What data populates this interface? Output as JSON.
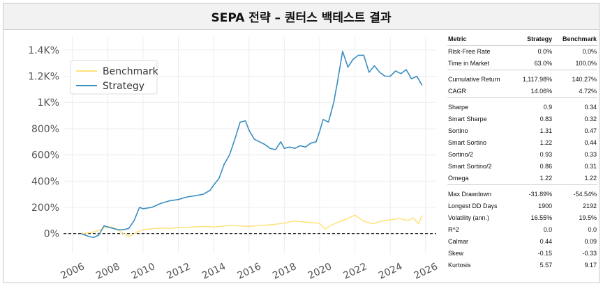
{
  "title": "SEPA 전략 – 퀀터스 백테스트 결과",
  "chart_data": {
    "type": "line",
    "xlim": [
      2005.5,
      2026.6
    ],
    "ylim": [
      -150,
      1500
    ],
    "x_ticks": [
      "2006",
      "2008",
      "2010",
      "2012",
      "2014",
      "2016",
      "2018",
      "2020",
      "2022",
      "2024",
      "2026"
    ],
    "x_tick_values": [
      2006,
      2008,
      2010,
      2012,
      2014,
      2016,
      2018,
      2020,
      2022,
      2024,
      2026
    ],
    "y_ticks": [
      "0%",
      "200%",
      "400%",
      "600%",
      "800%",
      "1K%",
      "1.2K%",
      "1.4K%"
    ],
    "y_tick_values": [
      0,
      200,
      400,
      600,
      800,
      1000,
      1200,
      1400
    ],
    "grid": true,
    "legend_position": "top-left",
    "baseline": 0,
    "colors": {
      "Benchmark": "#ffe27a",
      "Strategy": "#3a8ec0"
    },
    "series": [
      {
        "name": "Benchmark",
        "x": [
          2006.5,
          2006.9,
          2007.3,
          2007.6,
          2007.8,
          2008.0,
          2008.3,
          2008.6,
          2008.9,
          2009.2,
          2009.4,
          2009.7,
          2010.0,
          2010.5,
          2011.0,
          2011.5,
          2012.0,
          2012.5,
          2013.0,
          2013.5,
          2014.0,
          2014.5,
          2015.0,
          2015.5,
          2016.0,
          2016.5,
          2017.0,
          2017.5,
          2018.0,
          2018.5,
          2019.0,
          2019.5,
          2020.0,
          2020.3,
          2020.6,
          2021.0,
          2021.5,
          2022.0,
          2022.5,
          2023.0,
          2023.5,
          2024.0,
          2024.5,
          2025.0,
          2025.3,
          2025.6,
          2025.8
        ],
        "y": [
          0,
          5,
          15,
          30,
          45,
          55,
          48,
          25,
          0,
          -20,
          -10,
          15,
          30,
          38,
          42,
          40,
          45,
          48,
          52,
          55,
          50,
          57,
          62,
          58,
          55,
          60,
          65,
          72,
          80,
          95,
          90,
          85,
          78,
          35,
          60,
          85,
          110,
          140,
          95,
          75,
          95,
          105,
          115,
          100,
          120,
          75,
          140
        ]
      },
      {
        "name": "Strategy",
        "x": [
          2006.5,
          2006.9,
          2007.2,
          2007.5,
          2007.8,
          2008.0,
          2008.3,
          2008.6,
          2008.9,
          2009.2,
          2009.5,
          2009.8,
          2010.0,
          2010.5,
          2011.0,
          2011.5,
          2012.0,
          2012.5,
          2013.0,
          2013.4,
          2013.8,
          2014.0,
          2014.3,
          2014.6,
          2014.9,
          2015.2,
          2015.5,
          2015.8,
          2016.0,
          2016.3,
          2016.6,
          2016.9,
          2017.2,
          2017.5,
          2017.8,
          2018.0,
          2018.3,
          2018.6,
          2018.9,
          2019.2,
          2019.5,
          2019.8,
          2020.0,
          2020.2,
          2020.5,
          2020.8,
          2021.0,
          2021.3,
          2021.6,
          2021.9,
          2022.2,
          2022.5,
          2022.8,
          2023.1,
          2023.4,
          2023.7,
          2024.0,
          2024.3,
          2024.6,
          2024.9,
          2025.2,
          2025.5,
          2025.8
        ],
        "y": [
          0,
          -20,
          -30,
          -10,
          60,
          50,
          40,
          30,
          30,
          40,
          100,
          200,
          190,
          200,
          230,
          250,
          260,
          280,
          290,
          300,
          330,
          370,
          420,
          530,
          600,
          720,
          850,
          860,
          790,
          720,
          700,
          680,
          650,
          640,
          700,
          650,
          660,
          650,
          670,
          660,
          690,
          700,
          780,
          870,
          850,
          1000,
          1150,
          1390,
          1270,
          1330,
          1360,
          1360,
          1230,
          1280,
          1230,
          1200,
          1200,
          1240,
          1220,
          1250,
          1180,
          1200,
          1130
        ]
      }
    ]
  },
  "table": {
    "headers": [
      "Metric",
      "Strategy",
      "Benchmark"
    ],
    "groups": [
      [
        [
          "Risk-Free Rate",
          "0.0%",
          "0.0%"
        ],
        [
          "Time in Market",
          "63.0%",
          "100.0%"
        ]
      ],
      [
        [
          "Cumulative Return",
          "1,117.98%",
          "140.27%"
        ],
        [
          "CAGR",
          "14.06%",
          "4.72%"
        ]
      ],
      [
        [
          "Sharpe",
          "0.9",
          "0.34"
        ],
        [
          "Smart Sharpe",
          "0.83",
          "0.32"
        ],
        [
          "Sortino",
          "1.31",
          "0.47"
        ],
        [
          "Smart Sortino",
          "1.22",
          "0.44"
        ],
        [
          "Sortino/2",
          "0.93",
          "0.33"
        ],
        [
          "Smart Sortino/2",
          "0.86",
          "0.31"
        ],
        [
          "Omega",
          "1.22",
          "1.22"
        ]
      ],
      [
        [
          "Max Drawdown",
          "-31.89%",
          "-54.54%"
        ],
        [
          "Longest DD Days",
          "1900",
          "2192"
        ],
        [
          "Volatility (ann.)",
          "16.55%",
          "19.5%"
        ],
        [
          "R^2",
          "0.0",
          "0.0"
        ],
        [
          "Calmar",
          "0.44",
          "0.09"
        ],
        [
          "Skew",
          "-0.15",
          "-0.33"
        ],
        [
          "Kurtosis",
          "5.57",
          "9.17"
        ]
      ]
    ]
  }
}
